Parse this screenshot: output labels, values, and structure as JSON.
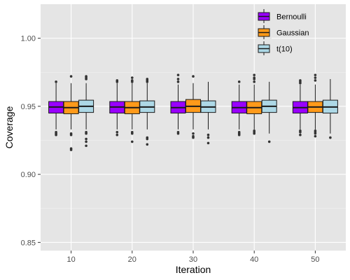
{
  "colors": {
    "panel_bg": "#e5e5e5",
    "grid_major": "#ffffff",
    "grid_minor": "#f2f2f2",
    "box_outline": "#1a1a1a",
    "outlier": "#333333"
  },
  "chart_data": {
    "type": "boxplot",
    "xlabel": "Iteration",
    "ylabel": "Coverage",
    "categories": [
      "10",
      "20",
      "30",
      "40",
      "50"
    ],
    "ylim": [
      0.844,
      1.025
    ],
    "yticks": [
      0.85,
      0.9,
      0.95,
      1.0
    ],
    "ytick_labels": [
      "0.85",
      "0.90",
      "0.95",
      "1.00"
    ],
    "grid": true,
    "legend_position": "top-right",
    "series": [
      {
        "name": "Bernoulli",
        "color": "#9900ff",
        "boxes": [
          {
            "whisker_low": 0.933,
            "q1": 0.945,
            "median": 0.9495,
            "q3": 0.9535,
            "whisker_high": 0.967,
            "outliers": [
              0.968,
              0.931,
              0.93,
              0.929
            ]
          },
          {
            "whisker_low": 0.933,
            "q1": 0.945,
            "median": 0.9495,
            "q3": 0.9535,
            "whisker_high": 0.967,
            "outliers": [
              0.969,
              0.968,
              0.931,
              0.929
            ]
          },
          {
            "whisker_low": 0.933,
            "q1": 0.945,
            "median": 0.949,
            "q3": 0.9535,
            "whisker_high": 0.966,
            "outliers": [
              0.973,
              0.97,
              0.968,
              0.931,
              0.93
            ]
          },
          {
            "whisker_low": 0.933,
            "q1": 0.945,
            "median": 0.949,
            "q3": 0.9535,
            "whisker_high": 0.966,
            "outliers": [
              0.968,
              0.931,
              0.93,
              0.929
            ]
          },
          {
            "whisker_low": 0.933,
            "q1": 0.945,
            "median": 0.949,
            "q3": 0.9535,
            "whisker_high": 0.966,
            "outliers": [
              0.969,
              0.968,
              0.967,
              0.932,
              0.931,
              0.929
            ]
          }
        ]
      },
      {
        "name": "Gaussian",
        "color": "#ff9a1a",
        "boxes": [
          {
            "whisker_low": 0.933,
            "q1": 0.9445,
            "median": 0.949,
            "q3": 0.9535,
            "whisker_high": 0.967,
            "outliers": [
              0.972,
              0.93,
              0.929,
              0.919,
              0.918
            ]
          },
          {
            "whisker_low": 0.933,
            "q1": 0.9445,
            "median": 0.949,
            "q3": 0.9535,
            "whisker_high": 0.967,
            "outliers": [
              0.971,
              0.969,
              0.968,
              0.931,
              0.93,
              0.924
            ]
          },
          {
            "whisker_low": 0.933,
            "q1": 0.9455,
            "median": 0.95,
            "q3": 0.955,
            "whisker_high": 0.967,
            "outliers": [
              0.972,
              0.93,
              0.928,
              0.927
            ]
          },
          {
            "whisker_low": 0.933,
            "q1": 0.9445,
            "median": 0.949,
            "q3": 0.9535,
            "whisker_high": 0.966,
            "outliers": [
              0.973,
              0.971,
              0.97,
              0.968,
              0.932,
              0.931,
              0.93
            ]
          },
          {
            "whisker_low": 0.933,
            "q1": 0.9455,
            "median": 0.9495,
            "q3": 0.9535,
            "whisker_high": 0.966,
            "outliers": [
              0.973,
              0.971,
              0.969,
              0.932,
              0.931,
              0.93,
              0.928
            ]
          }
        ]
      },
      {
        "name": "t(10)",
        "color": "#add8e6",
        "boxes": [
          {
            "whisker_low": 0.933,
            "q1": 0.9455,
            "median": 0.95,
            "q3": 0.9545,
            "whisker_high": 0.967,
            "outliers": [
              0.972,
              0.971,
              0.97,
              0.931,
              0.93,
              0.926,
              0.924,
              0.921
            ]
          },
          {
            "whisker_low": 0.933,
            "q1": 0.9455,
            "median": 0.9495,
            "q3": 0.954,
            "whisker_high": 0.967,
            "outliers": [
              0.97,
              0.969,
              0.968,
              0.927,
              0.926,
              0.922
            ]
          },
          {
            "whisker_low": 0.933,
            "q1": 0.9455,
            "median": 0.9495,
            "q3": 0.954,
            "whisker_high": 0.968,
            "outliers": [
              0.929,
              0.927,
              0.923
            ]
          },
          {
            "whisker_low": 0.93,
            "q1": 0.9455,
            "median": 0.95,
            "q3": 0.9545,
            "whisker_high": 0.968,
            "outliers": [
              0.924
            ]
          },
          {
            "whisker_low": 0.93,
            "q1": 0.945,
            "median": 0.9495,
            "q3": 0.9545,
            "whisker_high": 0.97,
            "outliers": [
              0.927
            ]
          }
        ]
      }
    ]
  }
}
